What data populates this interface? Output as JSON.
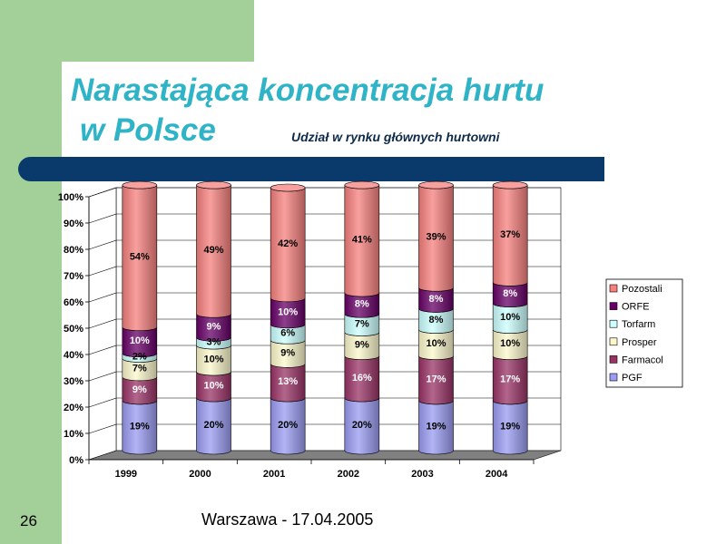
{
  "slide": {
    "title_line1": "Narastająca koncentracja hurtu",
    "title_line2": "w Polsce",
    "subtitle": "Udział w rynku głównych hurtowni",
    "slide_number": "26",
    "footer": "Warszawa - 17.04.2005"
  },
  "colors": {
    "PGF": "#9a9bf2",
    "Farmacol": "#993366",
    "Prosper": "#fcf8cc",
    "Torfarm": "#ccffff",
    "ORFE": "#660066",
    "Pozostali": "#f6807e",
    "floor": "#808080",
    "title": "#2fb3c7",
    "banner": "#0a3a6b",
    "sidebar": "#a3cf98"
  },
  "chart_data": {
    "type": "bar",
    "stacked": true,
    "three_d": true,
    "categories": [
      "1999",
      "2000",
      "2001",
      "2002",
      "2003",
      "2004"
    ],
    "series": [
      {
        "name": "PGF",
        "values": [
          19,
          20,
          20,
          20,
          19,
          19
        ],
        "labels": [
          "19%",
          "20%",
          "20%",
          "20%",
          "19%",
          "19%"
        ]
      },
      {
        "name": "Farmacol",
        "values": [
          9,
          10,
          13,
          16,
          17,
          17
        ],
        "labels": [
          "9%",
          "10%",
          "13%",
          "16%",
          "17%",
          "17%"
        ]
      },
      {
        "name": "Prosper",
        "values": [
          7,
          10,
          9,
          9,
          10,
          10
        ],
        "labels": [
          "7%",
          "10%",
          "9%",
          "9%",
          "10%",
          "10%"
        ]
      },
      {
        "name": "Torfarm",
        "values": [
          2,
          3,
          6,
          7,
          8,
          10
        ],
        "labels": [
          "2%",
          "3%",
          "6%",
          "7%",
          "8%",
          "10%"
        ]
      },
      {
        "name": "ORFE",
        "values": [
          10,
          9,
          10,
          8,
          8,
          8
        ],
        "labels": [
          "10%",
          "9%",
          "10%",
          "8%",
          "8%",
          "8%"
        ]
      },
      {
        "name": "Pozostali",
        "values": [
          54,
          49,
          42,
          41,
          39,
          37
        ],
        "labels": [
          "54%",
          "49%",
          "42%",
          "41%",
          "39%",
          "37%"
        ]
      }
    ],
    "y_ticks": [
      "0%",
      "10%",
      "20%",
      "30%",
      "40%",
      "50%",
      "60%",
      "70%",
      "80%",
      "90%",
      "100%"
    ],
    "ylim": [
      0,
      100
    ],
    "grid": true,
    "legend_position": "right",
    "legend_order": [
      "Pozostali",
      "ORFE",
      "Torfarm",
      "Prosper",
      "Farmacol",
      "PGF"
    ]
  }
}
